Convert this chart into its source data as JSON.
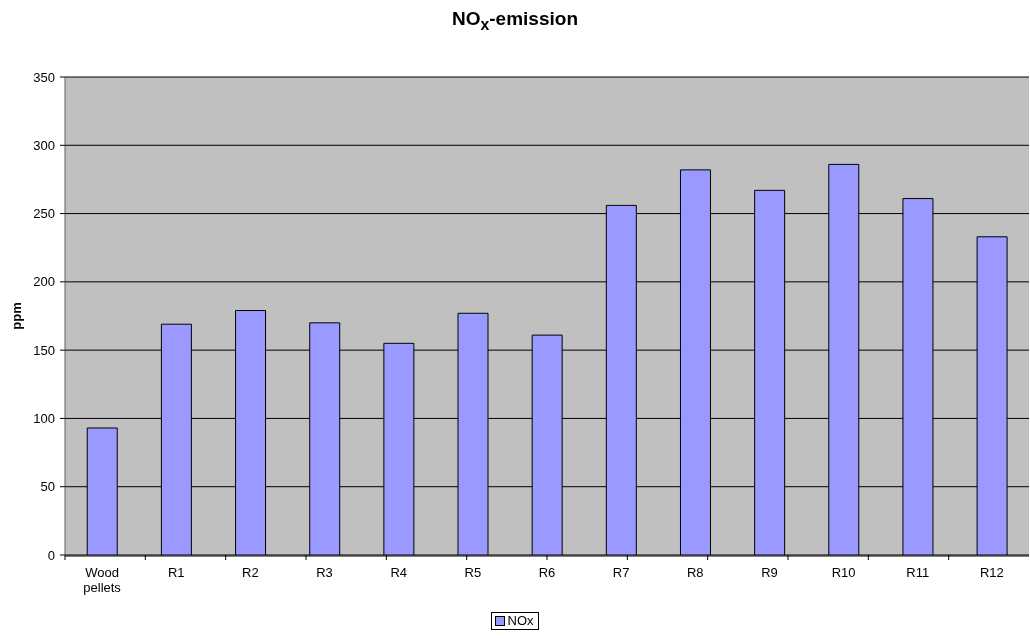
{
  "chart_data": {
    "type": "bar",
    "title": "NO$_{x}$-emission",
    "ylabel": "ppm",
    "categories": [
      "Wood pellets",
      "R1",
      "R2",
      "R3",
      "R4",
      "R5",
      "R6",
      "R7",
      "R8",
      "R9",
      "R10",
      "R11",
      "R12"
    ],
    "series": [
      {
        "name": "NOx",
        "color": "#9999ff",
        "values": [
          93,
          169,
          179,
          170,
          155,
          177,
          161,
          256,
          282,
          267,
          286,
          261,
          233
        ]
      }
    ],
    "ylim": [
      0,
      350
    ],
    "yticks": [
      0,
      50,
      100,
      150,
      200,
      250,
      300,
      350
    ],
    "grid": "y",
    "legend": "bottom"
  }
}
